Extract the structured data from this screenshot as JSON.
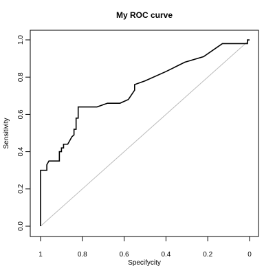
{
  "chart_data": {
    "type": "line",
    "title": "My ROC curve",
    "xlabel": "Specifycity",
    "ylabel": "Sensitivity",
    "xlim": [
      1,
      0
    ],
    "ylim": [
      0,
      1
    ],
    "x_ticks": [
      1,
      0.8,
      0.6,
      0.4,
      0.2,
      0
    ],
    "x_tick_labels": [
      "1",
      "0.8",
      "0.6",
      "0.4",
      "0.2",
      "0"
    ],
    "y_ticks": [
      0,
      0.2,
      0.4,
      0.6,
      0.8,
      1
    ],
    "y_tick_labels": [
      "0.0",
      "0.2",
      "0.4",
      "0.6",
      "0.8",
      "1.0"
    ],
    "grid": false,
    "reference_line": {
      "from": [
        1,
        0
      ],
      "to": [
        0,
        1
      ],
      "color": "#bbbbbb"
    },
    "series": [
      {
        "color": "#000000",
        "points": [
          [
            1.0,
            0.0
          ],
          [
            1.0,
            0.3
          ],
          [
            0.97,
            0.3
          ],
          [
            0.97,
            0.33
          ],
          [
            0.96,
            0.35
          ],
          [
            0.91,
            0.35
          ],
          [
            0.91,
            0.4
          ],
          [
            0.9,
            0.4
          ],
          [
            0.9,
            0.42
          ],
          [
            0.89,
            0.42
          ],
          [
            0.89,
            0.44
          ],
          [
            0.87,
            0.44
          ],
          [
            0.86,
            0.46
          ],
          [
            0.85,
            0.48
          ],
          [
            0.84,
            0.49
          ],
          [
            0.84,
            0.52
          ],
          [
            0.83,
            0.52
          ],
          [
            0.83,
            0.58
          ],
          [
            0.82,
            0.58
          ],
          [
            0.82,
            0.64
          ],
          [
            0.73,
            0.64
          ],
          [
            0.68,
            0.66
          ],
          [
            0.62,
            0.66
          ],
          [
            0.58,
            0.68
          ],
          [
            0.55,
            0.73
          ],
          [
            0.55,
            0.76
          ],
          [
            0.5,
            0.78
          ],
          [
            0.4,
            0.83
          ],
          [
            0.31,
            0.88
          ],
          [
            0.22,
            0.91
          ],
          [
            0.13,
            0.98
          ],
          [
            0.01,
            0.98
          ],
          [
            0.01,
            1.0
          ],
          [
            0.0,
            1.0
          ]
        ]
      }
    ]
  }
}
